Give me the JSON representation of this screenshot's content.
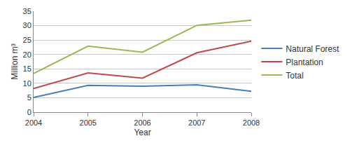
{
  "chart_data": {
    "type": "line",
    "x_label": "Year",
    "y_label": "Million m³",
    "categories": [
      "2004",
      "2005",
      "2006",
      "2007",
      "2008"
    ],
    "series": [
      {
        "name": "Natural Forest",
        "color": "#4a7ebb",
        "values": [
          5.1,
          9.3,
          9.0,
          9.5,
          7.2
        ]
      },
      {
        "name": "Plantation",
        "color": "#be4b48",
        "values": [
          8.2,
          13.6,
          11.8,
          20.6,
          24.6
        ]
      },
      {
        "name": "Total",
        "color": "#98b954",
        "values": [
          13.4,
          22.9,
          20.8,
          30.1,
          31.9
        ]
      }
    ],
    "ylim": [
      0,
      35
    ],
    "yticks": [
      0,
      5,
      10,
      15,
      20,
      25,
      30,
      35
    ],
    "grid": true,
    "legend": "right"
  }
}
